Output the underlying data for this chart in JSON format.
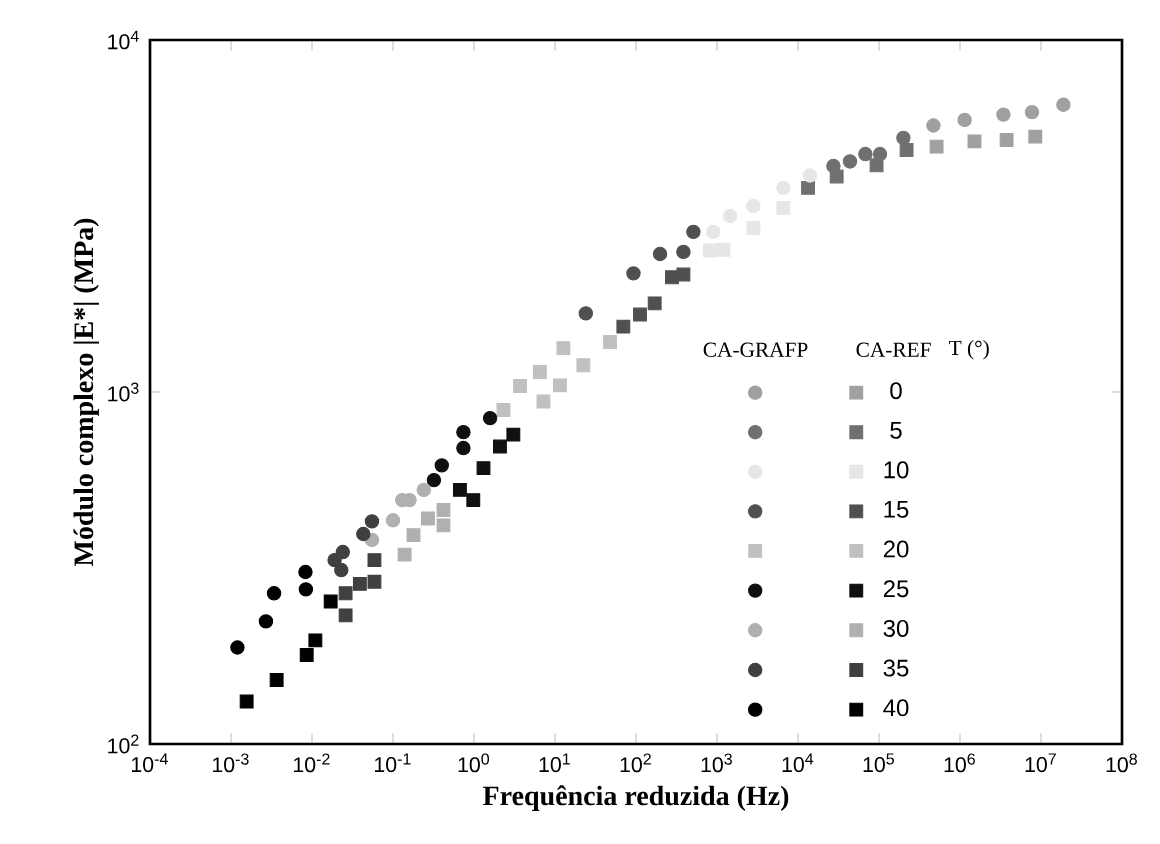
{
  "chart_data": {
    "type": "scatter",
    "xlabel": "Frequência reduzida (Hz)",
    "ylabel": "Módulo complexo |E*| (MPa)",
    "log": "xy",
    "xlim": [
      0.0001,
      100000000
    ],
    "ylim": [
      100,
      10000
    ],
    "xticks": [
      {
        "value": 0.0001,
        "label": "10$^{-4}$"
      },
      {
        "value": 0.001,
        "label": "10$^{-3}$"
      },
      {
        "value": 0.01,
        "label": "10$^{-2}$"
      },
      {
        "value": 0.1,
        "label": "10$^{-1}$"
      },
      {
        "value": 1,
        "label": "10$^{0}$"
      },
      {
        "value": 10,
        "label": "10$^{1}$"
      },
      {
        "value": 100,
        "label": "10$^{2}$"
      },
      {
        "value": 1000,
        "label": "10$^{3}$"
      },
      {
        "value": 10000,
        "label": "10$^{4}$"
      },
      {
        "value": 100000,
        "label": "10$^{5}$"
      },
      {
        "value": 1000000,
        "label": "10$^{6}$"
      },
      {
        "value": 10000000,
        "label": "10$^{7}$"
      },
      {
        "value": 100000000,
        "label": "10$^{8}$"
      }
    ],
    "yticks": [
      {
        "value": 100,
        "label": "10$^{2}$"
      },
      {
        "value": 1000,
        "label": "10$^{3}$"
      },
      {
        "value": 10000,
        "label": "10$^{4}$"
      }
    ],
    "legend": "bottom right",
    "legend_title": "T (°)",
    "annotations": [
      "CA-GRAFP",
      "CA-REF"
    ],
    "series": [
      {
        "color": "#a0a0a0",
        "marker": "circle",
        "x": [
          470000,
          1140000,
          3440000,
          7740000,
          18900000
        ],
        "values": [
          5715,
          5929,
          6138,
          6237,
          6546
        ]
      },
      {
        "name": "0",
        "color": "#a0a0a0",
        "marker": "square",
        "x": [
          514000,
          1510000,
          3760000,
          8500000
        ],
        "values": [
          4977,
          5150,
          5200,
          5316
        ]
      },
      {
        "color": "#707070",
        "marker": "circle",
        "x": [
          27350,
          43850,
          67900,
          102800,
          200000
        ],
        "values": [
          4385,
          4518,
          4742,
          4742,
          5272
        ]
      },
      {
        "name": "5",
        "color": "#707070",
        "marker": "square",
        "x": [
          13300,
          30000,
          93300,
          219000
        ],
        "values": [
          3800,
          4096,
          4406,
          4870
        ]
      },
      {
        "color": "#e6e6e6",
        "marker": "circle",
        "x": [
          903,
          1446,
          2812,
          6600,
          14060
        ],
        "values": [
          2851,
          3162,
          3376,
          3800,
          4121
        ]
      },
      {
        "name": "10",
        "color": "#e6e6e6",
        "marker": "square",
        "x": [
          820,
          1200,
          2812,
          6600
        ],
        "values": [
          2523,
          2535,
          2924,
          3334
        ]
      },
      {
        "color": "#505050",
        "marker": "circle",
        "x": [
          24,
          93,
          198,
          385,
          511
        ],
        "values": [
          1672,
          2173,
          2466,
          2500,
          2851
        ]
      },
      {
        "name": "15",
        "color": "#505050",
        "marker": "square",
        "x": [
          69.8,
          112,
          170,
          278,
          385
        ],
        "values": [
          1534,
          1660,
          1786,
          2118,
          2157
        ]
      },
      {
        "color": "#c0c0c0",
        "marker": "square",
        "x": [
          2.31,
          3.7,
          6.5,
          12.7
        ],
        "values": [
          889,
          1040,
          1140,
          1333
        ]
      },
      {
        "name": "20",
        "color": "#c0c0c0",
        "marker": "square",
        "x": [
          7.2,
          11.5,
          22.4,
          47.8
        ],
        "values": [
          940,
          1044,
          1191,
          1387
        ]
      },
      {
        "color": "#101010",
        "marker": "circle",
        "x": [
          0.32,
          0.4,
          0.74,
          0.74,
          1.58
        ],
        "values": [
          562,
          619,
          769,
          693,
          843
        ]
      },
      {
        "name": "25",
        "color": "#101010",
        "marker": "square",
        "x": [
          0.67,
          0.98,
          1.31,
          2.09,
          3.06
        ],
        "values": [
          527,
          493,
          608,
          700,
          757
        ]
      },
      {
        "color": "#b0b0b0",
        "marker": "circle",
        "x": [
          0.055,
          0.1,
          0.13,
          0.16,
          0.24
        ],
        "values": [
          380,
          432,
          493,
          493,
          527
        ]
      },
      {
        "name": "30",
        "color": "#b0b0b0",
        "marker": "square",
        "x": [
          0.139,
          0.179,
          0.27,
          0.42,
          0.42
        ],
        "values": [
          345,
          392,
          437,
          462,
          418
        ]
      },
      {
        "color": "#404040",
        "marker": "circle",
        "x": [
          0.019,
          0.024,
          0.023,
          0.043,
          0.055
        ],
        "values": [
          333,
          351,
          312,
          395,
          429
        ]
      },
      {
        "name": "35",
        "color": "#404040",
        "marker": "square",
        "x": [
          0.026,
          0.026,
          0.039,
          0.059,
          0.059
        ],
        "values": [
          232,
          268,
          285,
          289,
          333
        ]
      },
      {
        "color": "#000000",
        "marker": "circle",
        "x": [
          0.0012,
          0.0027,
          0.0034,
          0.0083,
          0.0084
        ],
        "values": [
          188,
          223,
          268,
          308,
          275
        ]
      },
      {
        "name": "40",
        "color": "#000000",
        "marker": "square",
        "x": [
          0.00156,
          0.00366,
          0.0086,
          0.011,
          0.017
        ],
        "values": [
          132,
          152,
          179,
          197,
          254
        ]
      }
    ]
  }
}
